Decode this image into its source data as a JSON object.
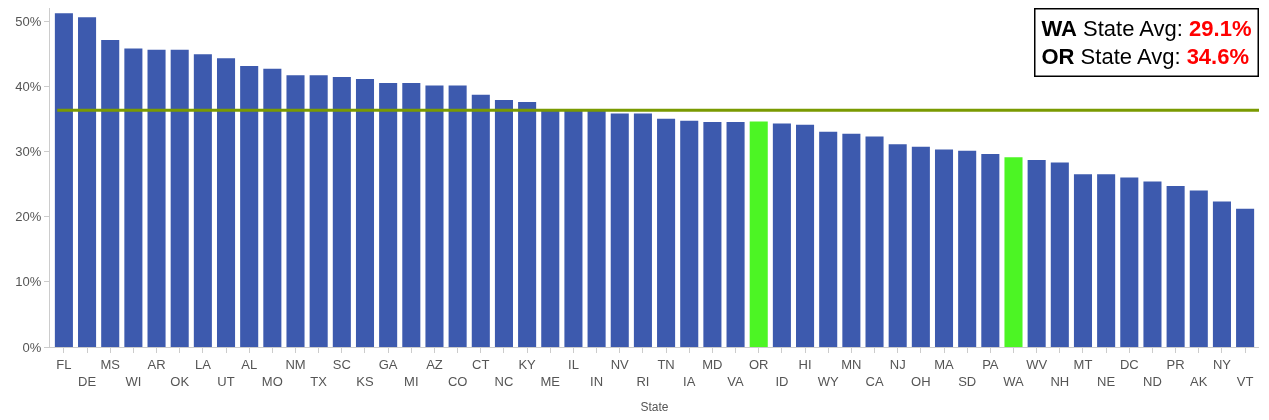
{
  "chart_data": {
    "type": "bar",
    "xlabel": "State",
    "categories": [
      "FL",
      "DE",
      "MS",
      "WI",
      "AR",
      "OK",
      "LA",
      "UT",
      "AL",
      "MO",
      "NM",
      "TX",
      "SC",
      "KS",
      "GA",
      "MI",
      "AZ",
      "CO",
      "CT",
      "NC",
      "KY",
      "ME",
      "IL",
      "IN",
      "NV",
      "RI",
      "TN",
      "IA",
      "MD",
      "VA",
      "OR",
      "ID",
      "HI",
      "WY",
      "MN",
      "CA",
      "NJ",
      "OH",
      "MA",
      "SD",
      "PA",
      "WA",
      "WV",
      "NH",
      "MT",
      "NE",
      "DC",
      "ND",
      "PR",
      "AK",
      "NY",
      "VT"
    ],
    "values": [
      51.2,
      50.6,
      47.1,
      45.8,
      45.6,
      45.6,
      44.9,
      44.3,
      43.1,
      42.7,
      41.7,
      41.7,
      41.4,
      41.1,
      40.5,
      40.5,
      40.1,
      40.1,
      38.7,
      37.9,
      37.6,
      36.5,
      36.5,
      36.5,
      35.8,
      35.8,
      35.0,
      34.7,
      34.5,
      34.5,
      34.6,
      34.3,
      34.1,
      33.0,
      32.7,
      32.3,
      31.1,
      30.7,
      30.3,
      30.1,
      29.6,
      29.1,
      28.7,
      28.3,
      26.5,
      26.5,
      26.0,
      25.4,
      24.7,
      24.0,
      22.3,
      21.2
    ],
    "colors": [
      "#3d5aae",
      "#3d5aae",
      "#3d5aae",
      "#3d5aae",
      "#3d5aae",
      "#3d5aae",
      "#3d5aae",
      "#3d5aae",
      "#3d5aae",
      "#3d5aae",
      "#3d5aae",
      "#3d5aae",
      "#3d5aae",
      "#3d5aae",
      "#3d5aae",
      "#3d5aae",
      "#3d5aae",
      "#3d5aae",
      "#3d5aae",
      "#3d5aae",
      "#3d5aae",
      "#3d5aae",
      "#3d5aae",
      "#3d5aae",
      "#3d5aae",
      "#3d5aae",
      "#3d5aae",
      "#3d5aae",
      "#3d5aae",
      "#3d5aae",
      "#4cf524",
      "#3d5aae",
      "#3d5aae",
      "#3d5aae",
      "#3d5aae",
      "#3d5aae",
      "#3d5aae",
      "#3d5aae",
      "#3d5aae",
      "#3d5aae",
      "#3d5aae",
      "#4cf524",
      "#3d5aae",
      "#3d5aae",
      "#3d5aae",
      "#3d5aae",
      "#3d5aae",
      "#3d5aae",
      "#3d5aae",
      "#3d5aae",
      "#3d5aae",
      "#3d5aae"
    ],
    "ylim": [
      0,
      52
    ],
    "yticks": [
      {
        "value": 0,
        "label": "0%"
      },
      {
        "value": 10,
        "label": "10%"
      },
      {
        "value": 20,
        "label": "20%"
      },
      {
        "value": 30,
        "label": "30%"
      },
      {
        "value": 40,
        "label": "40%"
      },
      {
        "value": 50,
        "label": "50%"
      }
    ],
    "ref_lines": [
      {
        "axis": "y",
        "value": 36.3,
        "color": "#7a9a01"
      }
    ],
    "annotations": [
      "WA State Avg: 29.1%",
      "OR State Avg: 34.6%"
    ]
  }
}
